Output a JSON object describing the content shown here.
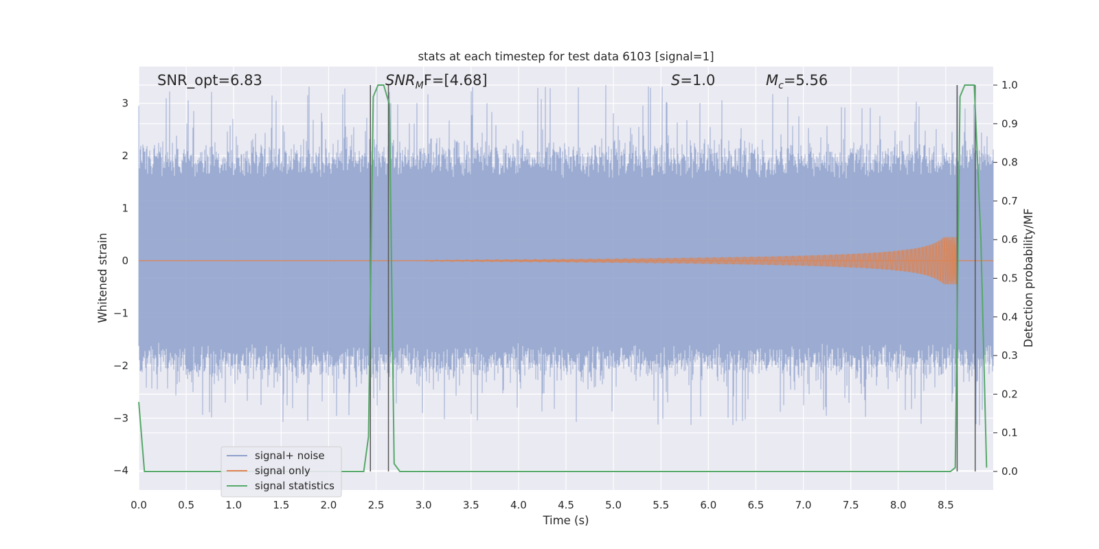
{
  "chart_data": {
    "type": "line",
    "title": "stats at each timestep for test data 6103 [signal=1]",
    "xlabel": "Time (s)",
    "ylabel": "Whitened strain",
    "ylabel_right": "Detection probability/MF",
    "xlim": [
      0.0,
      9.0
    ],
    "ylim": [
      -4.37,
      3.7
    ],
    "ylim_right": [
      -0.048,
      1.048
    ],
    "x_ticks": [
      0.0,
      0.5,
      1.0,
      1.5,
      2.0,
      2.5,
      3.0,
      3.5,
      4.0,
      4.5,
      5.0,
      5.5,
      6.0,
      6.5,
      7.0,
      7.5,
      8.0,
      8.5
    ],
    "x_tick_labels": [
      "0.0",
      "0.5",
      "1.0",
      "1.5",
      "2.0",
      "2.5",
      "3.0",
      "3.5",
      "4.0",
      "4.5",
      "5.0",
      "5.5",
      "6.0",
      "6.5",
      "7.0",
      "7.5",
      "8.0",
      "8.5"
    ],
    "y_ticks": [
      -4,
      -3,
      -2,
      -1,
      0,
      1,
      2,
      3
    ],
    "y_tick_labels": [
      "−4",
      "−3",
      "−2",
      "−1",
      "0",
      "1",
      "2",
      "3"
    ],
    "y_ticks_right": [
      0.0,
      0.1,
      0.2,
      0.3,
      0.4,
      0.5,
      0.6,
      0.7,
      0.8,
      0.9,
      1.0
    ],
    "y_tick_labels_right": [
      "0.0",
      "0.1",
      "0.2",
      "0.3",
      "0.4",
      "0.5",
      "0.6",
      "0.7",
      "0.8",
      "0.9",
      "1.0"
    ],
    "grid": true,
    "legend_position": "lower-left",
    "annotations": [
      {
        "key": "snr_opt",
        "text": "SNR_opt=6.83"
      },
      {
        "key": "snr_mf",
        "text": "SNR",
        "sub": "M",
        "rest": "F=[4.68]"
      },
      {
        "key": "s",
        "text": "S",
        "rest": "=1.0"
      },
      {
        "key": "mc",
        "text": "M",
        "sub": "c",
        "rest": "=5.56"
      }
    ],
    "series": [
      {
        "name": "signal+ noise",
        "color": "#8da0cb",
        "kind": "noise",
        "mean": 0.0,
        "typical_max": 2.0,
        "typical_min": -2.0,
        "extreme_max": 3.35,
        "extreme_min": -3.35
      },
      {
        "name": "signal only",
        "color": "#dd8452",
        "kind": "chirp",
        "merger_time": 8.62,
        "peak_amplitude": 0.45
      },
      {
        "name": "signal statistics",
        "color": "#55a868",
        "kind": "line",
        "axis": "right",
        "x": [
          0.0,
          0.06,
          0.12,
          2.37,
          2.42,
          2.47,
          2.52,
          2.58,
          2.64,
          2.69,
          2.75,
          8.55,
          8.6,
          8.65,
          8.7,
          8.8,
          8.87,
          8.93
        ],
        "y": [
          0.18,
          0.0,
          0.0,
          0.0,
          0.09,
          0.97,
          1.0,
          1.0,
          0.95,
          0.02,
          0.0,
          0.0,
          0.01,
          0.97,
          1.0,
          1.0,
          0.6,
          0.01
        ]
      }
    ],
    "vertical_lines": [
      2.44,
      2.63,
      8.62,
      8.81
    ],
    "vertical_line_color": "#555555",
    "background_color": "#eaeaf2"
  }
}
